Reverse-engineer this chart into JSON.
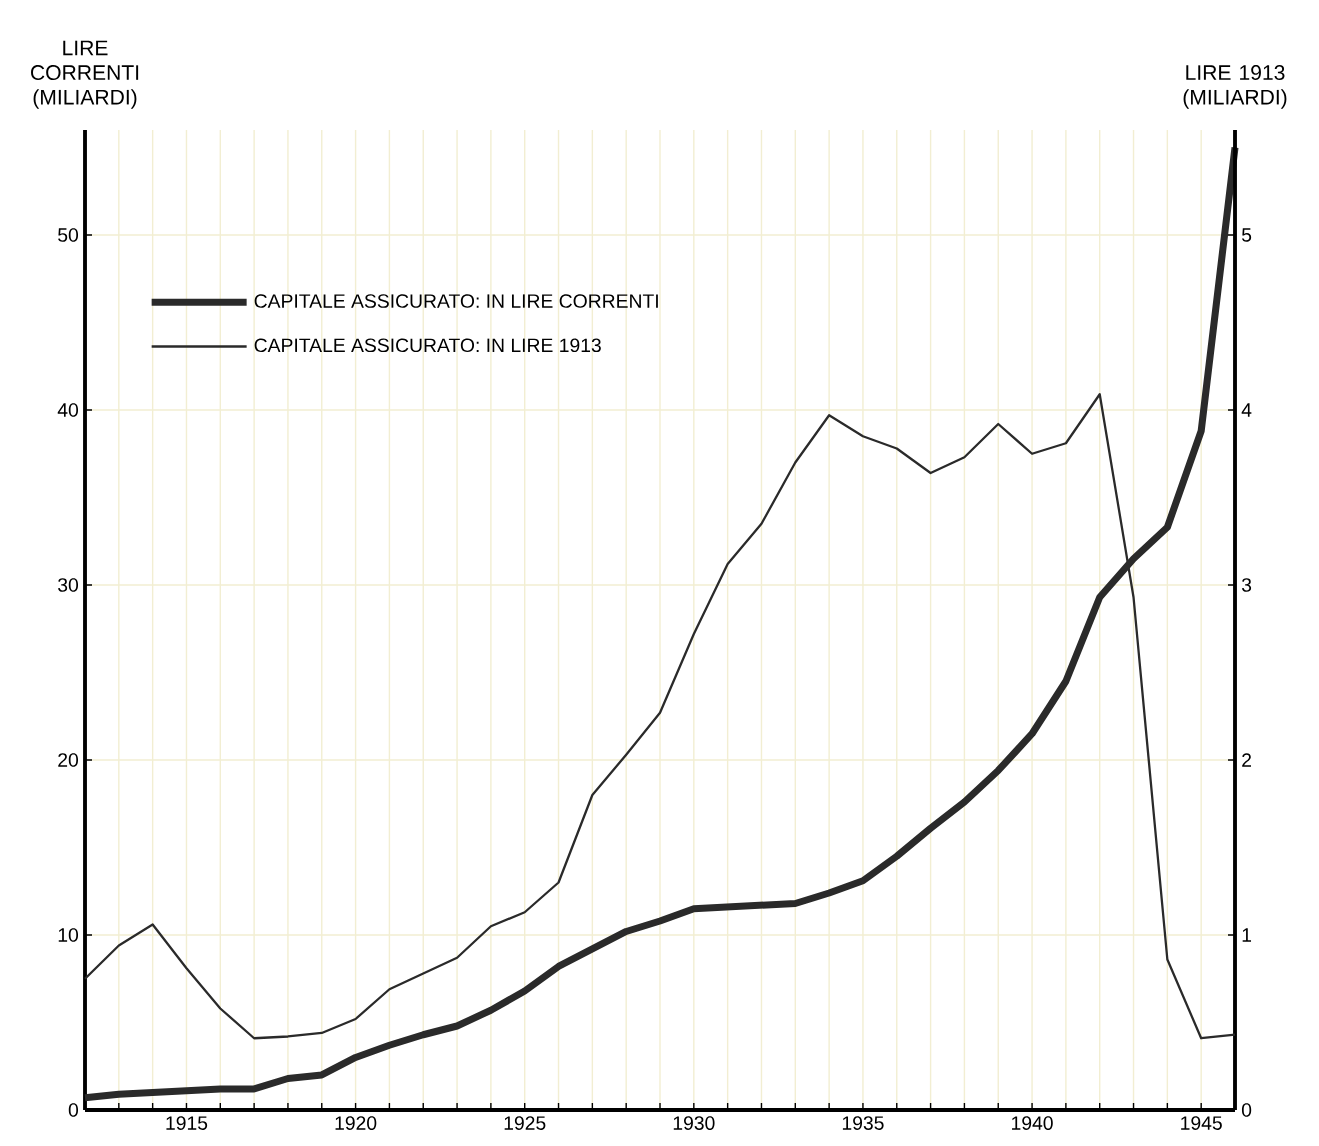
{
  "chart_data": {
    "type": "line",
    "ylabel": "LIRE CORRENTI (MILIARDI)",
    "y2label": "LIRE 1913 (MILIARDI)",
    "x": [
      1912,
      1913,
      1914,
      1915,
      1916,
      1917,
      1918,
      1919,
      1920,
      1921,
      1922,
      1923,
      1924,
      1925,
      1926,
      1927,
      1928,
      1929,
      1930,
      1931,
      1932,
      1933,
      1934,
      1935,
      1936,
      1937,
      1938,
      1939,
      1940,
      1941,
      1942,
      1943,
      1944,
      1945,
      1946
    ],
    "series": [
      {
        "name": "CAPITALE ASSICURATO: IN LIRE CORRENTI",
        "color": "#2a2a2a",
        "values": [
          0.7,
          0.9,
          1.0,
          1.1,
          1.2,
          1.2,
          1.8,
          2.0,
          3.0,
          3.7,
          4.3,
          4.8,
          5.7,
          6.8,
          8.2,
          9.2,
          10.2,
          10.8,
          11.5,
          11.6,
          11.7,
          11.8,
          12.4,
          13.1,
          14.5,
          16.1,
          17.6,
          19.4,
          21.5,
          24.5,
          29.3,
          31.5,
          33.3,
          38.8,
          55.0
        ]
      },
      {
        "name": "CAPITALE ASSICURATO: IN LIRE 1913",
        "color": "#2a2a2a",
        "axis": "y2",
        "values": [
          0.75,
          0.94,
          1.06,
          0.81,
          0.58,
          0.41,
          0.42,
          0.44,
          0.52,
          0.69,
          0.78,
          0.87,
          1.05,
          1.13,
          1.3,
          1.8,
          2.03,
          2.27,
          2.72,
          3.12,
          3.35,
          3.7,
          3.97,
          3.85,
          3.78,
          3.64,
          3.73,
          3.92,
          3.75,
          3.81,
          4.09,
          2.93,
          0.86,
          0.41,
          0.43
        ]
      }
    ],
    "xlim": [
      1912,
      1946
    ],
    "xticks": [
      {
        "value": 1912,
        "label": null
      },
      {
        "value": 1913,
        "label": null
      },
      {
        "value": 1914,
        "label": null
      },
      1915,
      {
        "value": 1916,
        "label": null
      },
      {
        "value": 1917,
        "label": null
      },
      {
        "value": 1918,
        "label": null
      },
      {
        "value": 1919,
        "label": null
      },
      1920,
      {
        "value": 1921,
        "label": null
      },
      {
        "value": 1922,
        "label": null
      },
      {
        "value": 1923,
        "label": null
      },
      {
        "value": 1924,
        "label": null
      },
      1925,
      {
        "value": 1926,
        "label": null
      },
      {
        "value": 1927,
        "label": null
      },
      {
        "value": 1928,
        "label": null
      },
      {
        "value": 1929,
        "label": null
      },
      1930,
      {
        "value": 1931,
        "label": null
      },
      {
        "value": 1932,
        "label": null
      },
      {
        "value": 1933,
        "label": null
      },
      {
        "value": 1934,
        "label": null
      },
      1935,
      {
        "value": 1936,
        "label": null
      },
      {
        "value": 1937,
        "label": null
      },
      {
        "value": 1938,
        "label": null
      },
      {
        "value": 1939,
        "label": null
      },
      1940,
      {
        "value": 1941,
        "label": null
      },
      {
        "value": 1942,
        "label": null
      },
      {
        "value": 1943,
        "label": null
      },
      {
        "value": 1944,
        "label": null
      },
      1945,
      {
        "value": 1946,
        "label": null
      }
    ],
    "ylim": [
      0,
      56
    ],
    "yticks": [
      0,
      10,
      20,
      30,
      40,
      50
    ],
    "y2lim": [
      0,
      5.6
    ],
    "y2ticks": [
      0,
      1,
      2,
      3,
      4,
      5
    ],
    "grid": true,
    "legend": "top left",
    "marker": "none",
    "line_style": "solid"
  }
}
